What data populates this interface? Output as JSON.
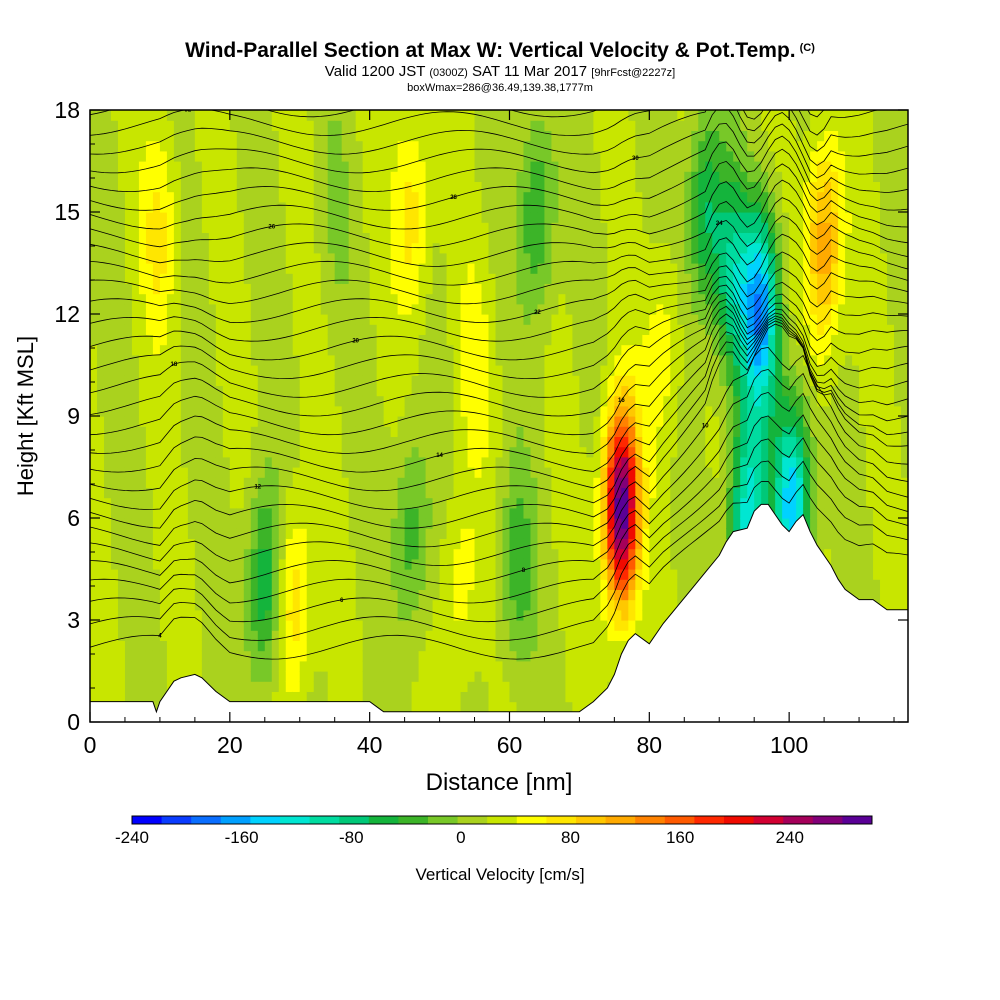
{
  "chart_data": {
    "type": "heatmap",
    "title": "Wind-Parallel Section at Max W: Vertical Velocity & Pot.Temp.",
    "title_suffix": "(C)",
    "subtitle_parts": [
      "Valid 1200 JST",
      "(0300Z)",
      "SAT 11 Mar 2017",
      "[9hrFcst@2227z]"
    ],
    "subtitle2": "boxWmax=286@36.49,139.38,1777m",
    "xlabel": "Distance [nm]",
    "ylabel": "Height [Kft MSL]",
    "xlim": [
      0,
      117
    ],
    "ylim": [
      0,
      18
    ],
    "x_ticks": [
      "0",
      "20",
      "40",
      "60",
      "80",
      "100"
    ],
    "y_ticks": [
      "0",
      "3",
      "6",
      "9",
      "12",
      "15",
      "18"
    ],
    "colorbar": {
      "label": "Vertical Velocity [cm/s]",
      "range": [
        -240,
        300
      ],
      "tick_labels": [
        "-240",
        "-160",
        "-80",
        "0",
        "80",
        "160",
        "240"
      ],
      "colors": [
        "#0000ff",
        "#0a3cff",
        "#0a6eff",
        "#00a0ff",
        "#00d2ff",
        "#00e6d2",
        "#00dca0",
        "#00c878",
        "#14b43c",
        "#3cb428",
        "#78c828",
        "#aad21e",
        "#c8e600",
        "#ffff00",
        "#ffe600",
        "#ffc800",
        "#ffaa00",
        "#ff8200",
        "#ff5a00",
        "#ff2800",
        "#f00a00",
        "#d20032",
        "#a5005a",
        "#820078",
        "#5a0096"
      ]
    },
    "velocity_field": {
      "units": "cm/s",
      "features": [
        {
          "x": 76,
          "y": 6.3,
          "peak": 286
        },
        {
          "x": 29,
          "y": 3.5,
          "peak": 70
        },
        {
          "x": 25,
          "y": 4.0,
          "peak": -90
        },
        {
          "x": 46,
          "y": 5.5,
          "peak": -60
        },
        {
          "x": 61,
          "y": 4.5,
          "peak": -55
        },
        {
          "x": 53,
          "y": 4.0,
          "peak": 40
        },
        {
          "x": 96,
          "y": 12.0,
          "peak": -180
        },
        {
          "x": 100.5,
          "y": 6.5,
          "peak": -170
        },
        {
          "x": 94,
          "y": 6.0,
          "peak": -140
        },
        {
          "x": 105,
          "y": 14.0,
          "peak": 110
        },
        {
          "x": 88,
          "y": 15.0,
          "peak": -90
        },
        {
          "x": 92,
          "y": 13.0,
          "peak": -100
        },
        {
          "x": 46,
          "y": 15.0,
          "peak": 60
        },
        {
          "x": 10,
          "y": 14.5,
          "peak": 50
        },
        {
          "x": 64,
          "y": 15.0,
          "peak": -70
        },
        {
          "x": 35,
          "y": 15.0,
          "peak": -20
        },
        {
          "x": 55,
          "y": 10.5,
          "peak": 30
        },
        {
          "x": 82,
          "y": 11.0,
          "peak": 40
        }
      ]
    },
    "potential_temperature_contours": {
      "units": "C",
      "labels": [
        "4",
        "6",
        "8",
        "10",
        "12",
        "14",
        "16",
        "18",
        "20",
        "22",
        "24",
        "26",
        "28",
        "30",
        "32"
      ]
    },
    "terrain_kft": {
      "x": [
        0,
        9,
        9.5,
        10,
        11,
        12,
        13,
        15,
        16,
        18,
        20,
        22,
        26,
        30,
        33,
        36,
        40,
        42,
        44,
        50,
        55,
        60,
        65,
        68,
        70,
        72,
        74,
        75,
        76,
        77,
        78,
        80,
        81,
        82,
        84,
        86,
        88,
        90,
        91,
        92,
        94,
        95,
        96,
        97,
        98,
        99,
        100,
        101,
        102,
        103,
        104,
        105,
        106,
        107,
        108,
        110,
        112,
        114,
        115,
        117
      ],
      "y": [
        0.6,
        0.6,
        0.3,
        0.6,
        0.9,
        1.2,
        1.3,
        1.4,
        1.3,
        0.9,
        0.6,
        0.6,
        0.6,
        0.6,
        0.6,
        0.6,
        0.6,
        0.3,
        0.3,
        0.3,
        0.3,
        0.3,
        0.3,
        0.3,
        0.3,
        0.6,
        1.0,
        1.4,
        2.0,
        2.4,
        2.6,
        2.3,
        2.6,
        2.9,
        3.4,
        3.9,
        4.4,
        4.9,
        5.3,
        5.6,
        5.7,
        6.2,
        6.4,
        6.4,
        6.1,
        5.8,
        5.6,
        5.9,
        6.1,
        5.6,
        5.2,
        4.9,
        4.6,
        4.2,
        3.9,
        3.6,
        3.6,
        3.3,
        3.3,
        3.3
      ]
    }
  }
}
